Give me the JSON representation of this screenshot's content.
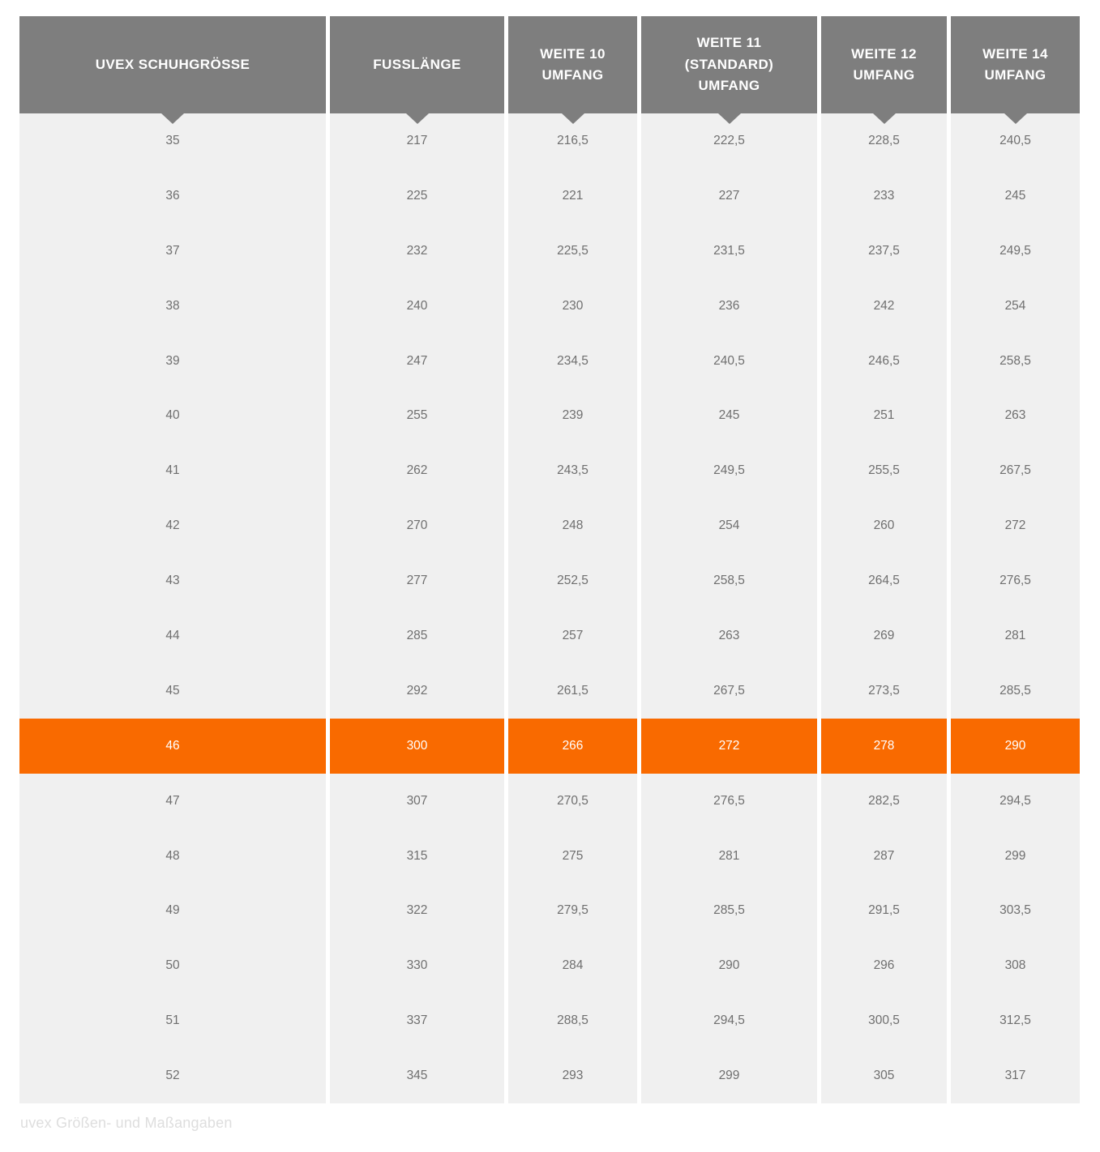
{
  "page": {
    "caption": "uvex Größen- und Maßangaben"
  },
  "colors": {
    "header_bg": "#7E7E7E",
    "header_text": "#FFFFFF",
    "row_bg": "#F0F0F0",
    "row_text": "#6F6F6F",
    "highlight_bg": "#F96A00",
    "highlight_text": "#FFFFFF",
    "caption_text": "#DEDEDE"
  },
  "header": {
    "col0": "UVEX SCHUHGRÖSSE",
    "col1": "FUSSLÄNGE",
    "col2": "WEITE 10\nUMFANG",
    "col3": "WEITE 11\n(STANDARD)\nUMFANG",
    "col4": "WEITE 12\nUMFANG",
    "col5": "WEITE 14\nUMFANG"
  },
  "chart_data": {
    "type": "table",
    "title": "uvex Größen- und Maßangaben",
    "columns": [
      "UVEX SCHUHGRÖSSE",
      "FUSSLÄNGE",
      "WEITE 10 UMFANG",
      "WEITE 11 (STANDARD) UMFANG",
      "WEITE 12 UMFANG",
      "WEITE 14 UMFANG"
    ],
    "rows": [
      [
        "35",
        "217",
        "216,5",
        "222,5",
        "228,5",
        "240,5"
      ],
      [
        "36",
        "225",
        "221",
        "227",
        "233",
        "245"
      ],
      [
        "37",
        "232",
        "225,5",
        "231,5",
        "237,5",
        "249,5"
      ],
      [
        "38",
        "240",
        "230",
        "236",
        "242",
        "254"
      ],
      [
        "39",
        "247",
        "234,5",
        "240,5",
        "246,5",
        "258,5"
      ],
      [
        "40",
        "255",
        "239",
        "245",
        "251",
        "263"
      ],
      [
        "41",
        "262",
        "243,5",
        "249,5",
        "255,5",
        "267,5"
      ],
      [
        "42",
        "270",
        "248",
        "254",
        "260",
        "272"
      ],
      [
        "43",
        "277",
        "252,5",
        "258,5",
        "264,5",
        "276,5"
      ],
      [
        "44",
        "285",
        "257",
        "263",
        "269",
        "281"
      ],
      [
        "45",
        "292",
        "261,5",
        "267,5",
        "273,5",
        "285,5"
      ],
      [
        "46",
        "300",
        "266",
        "272",
        "278",
        "290"
      ],
      [
        "47",
        "307",
        "270,5",
        "276,5",
        "282,5",
        "294,5"
      ],
      [
        "48",
        "315",
        "275",
        "281",
        "287",
        "299"
      ],
      [
        "49",
        "322",
        "279,5",
        "285,5",
        "291,5",
        "303,5"
      ],
      [
        "50",
        "330",
        "284",
        "290",
        "296",
        "308"
      ],
      [
        "51",
        "337",
        "288,5",
        "294,5",
        "300,5",
        "312,5"
      ],
      [
        "52",
        "345",
        "293",
        "299",
        "305",
        "317"
      ]
    ],
    "highlighted_row": "46",
    "caption": "uvex Größen- und Maßangaben",
    "legend_position": "none",
    "grid": false
  }
}
